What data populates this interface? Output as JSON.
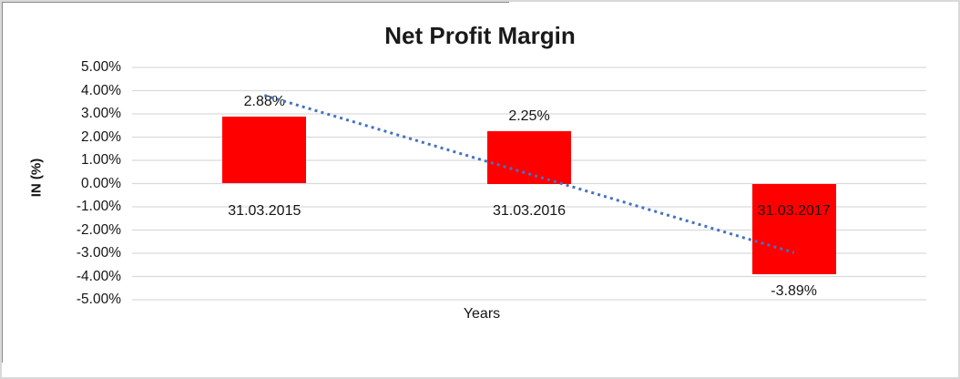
{
  "chart_data": {
    "type": "bar",
    "title": "Net Profit Margin",
    "xlabel": "Years",
    "ylabel": "IN (%)",
    "categories": [
      "31.03.2015",
      "31.03.2016",
      "31.03.2017"
    ],
    "values": [
      2.88,
      2.25,
      -3.89
    ],
    "data_labels": [
      "2.88%",
      "2.25%",
      "-3.89%"
    ],
    "y_ticks": [
      "5.00%",
      "4.00%",
      "3.00%",
      "2.00%",
      "1.00%",
      "0.00%",
      "-1.00%",
      "-2.00%",
      "-3.00%",
      "-4.00%",
      "-5.00%"
    ],
    "ylim": [
      -5,
      5
    ],
    "grid": true,
    "legend": "none",
    "bar_color": "#FF0000",
    "gridline_color": "#D9D9D9",
    "trendline": {
      "type": "linear",
      "style": "dotted",
      "color": "#4472C4"
    }
  }
}
